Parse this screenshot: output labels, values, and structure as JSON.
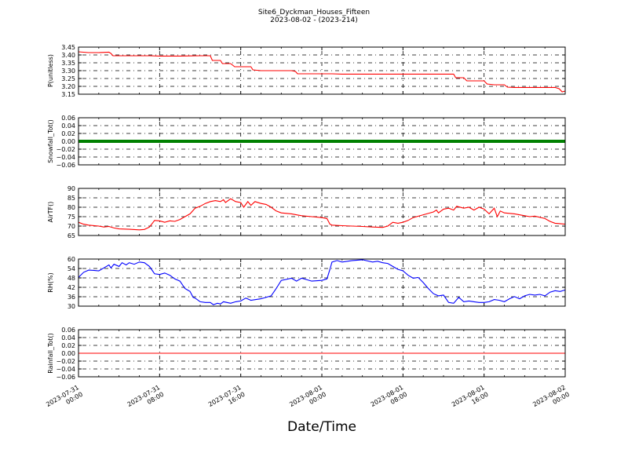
{
  "header": {
    "title": "Site6_Dyckman_Houses_Fifteen",
    "subtitle": "2023-08-02 - (2023-214)"
  },
  "xlabel": "Date/Time",
  "x_ticks": [
    "2023-07-31\n00:00",
    "2023-07-31\n08:00",
    "2023-07-31\n16:00",
    "2023-08-01\n00:00",
    "2023-08-01\n08:00",
    "2023-08-01\n16:00",
    "2023-08-02\n00:00"
  ],
  "x_range": [
    "2023-07-31 00:00",
    "2023-08-02 00:00"
  ],
  "colors": {
    "red": "#ff0000",
    "green": "#008000",
    "blue": "#0000ff"
  },
  "chart_data": [
    {
      "type": "line",
      "ylabel": "P(unitless)",
      "ylim": [
        3.15,
        3.45
      ],
      "yticks": [
        "3.15",
        "3.20",
        "3.25",
        "3.30",
        "3.35",
        "3.40",
        "3.45"
      ],
      "grid": true,
      "color": "#ff0000",
      "points": [
        [
          0,
          3.42
        ],
        [
          1,
          3.415
        ],
        [
          2,
          3.415
        ],
        [
          3,
          3.418
        ],
        [
          3.2,
          3.41
        ],
        [
          3.4,
          3.395
        ],
        [
          4,
          3.395
        ],
        [
          5,
          3.395
        ],
        [
          6,
          3.395
        ],
        [
          7,
          3.395
        ],
        [
          8,
          3.393
        ],
        [
          9,
          3.393
        ],
        [
          10,
          3.393
        ],
        [
          11,
          3.394
        ],
        [
          12,
          3.395
        ],
        [
          13,
          3.395
        ],
        [
          13.2,
          3.365
        ],
        [
          14,
          3.365
        ],
        [
          14.2,
          3.345
        ],
        [
          15,
          3.345
        ],
        [
          15.4,
          3.325
        ],
        [
          16,
          3.325
        ],
        [
          17,
          3.325
        ],
        [
          17.2,
          3.305
        ],
        [
          18,
          3.3
        ],
        [
          19,
          3.3
        ],
        [
          20,
          3.3
        ],
        [
          21,
          3.3
        ],
        [
          21.4,
          3.295
        ],
        [
          21.6,
          3.28
        ],
        [
          22,
          3.28
        ],
        [
          23,
          3.28
        ],
        [
          24,
          3.28
        ],
        [
          25,
          3.28
        ],
        [
          26,
          3.278
        ],
        [
          27,
          3.278
        ],
        [
          28,
          3.278
        ],
        [
          29,
          3.278
        ],
        [
          30,
          3.278
        ],
        [
          31,
          3.278
        ],
        [
          32,
          3.278
        ],
        [
          33,
          3.278
        ],
        [
          34,
          3.278
        ],
        [
          35,
          3.278
        ],
        [
          36,
          3.278
        ],
        [
          37,
          3.278
        ],
        [
          37.2,
          3.255
        ],
        [
          38,
          3.255
        ],
        [
          38.3,
          3.235
        ],
        [
          39,
          3.235
        ],
        [
          40,
          3.235
        ],
        [
          40.3,
          3.215
        ],
        [
          41,
          3.21
        ],
        [
          42,
          3.21
        ],
        [
          42.3,
          3.195
        ],
        [
          43,
          3.193
        ],
        [
          44,
          3.193
        ],
        [
          45,
          3.193
        ],
        [
          46,
          3.193
        ],
        [
          47,
          3.193
        ],
        [
          47.4,
          3.185
        ],
        [
          47.7,
          3.165
        ],
        [
          48,
          3.17
        ]
      ]
    },
    {
      "type": "line",
      "ylabel": "Snowfall_Tot()",
      "ylim": [
        -0.06,
        0.06
      ],
      "yticks": [
        "−0.06",
        "−0.04",
        "−0.02",
        "0.00",
        "0.02",
        "0.04",
        "0.06"
      ],
      "grid": true,
      "color": "#008000",
      "thick": true,
      "points": [
        [
          0,
          0
        ],
        [
          48,
          0
        ]
      ]
    },
    {
      "type": "line",
      "ylabel": "AirTF()",
      "ylim": [
        65,
        90
      ],
      "yticks": [
        "65",
        "70",
        "75",
        "80",
        "85",
        "90"
      ],
      "grid": true,
      "color": "#ff0000",
      "points": [
        [
          0,
          72
        ],
        [
          0.5,
          71
        ],
        [
          1,
          70.5
        ],
        [
          2,
          70
        ],
        [
          2.5,
          69.5
        ],
        [
          3,
          69.8
        ],
        [
          3.5,
          69
        ],
        [
          4,
          68.5
        ],
        [
          5,
          68.3
        ],
        [
          6,
          68
        ],
        [
          6.5,
          68.2
        ],
        [
          7,
          69.5
        ],
        [
          7.5,
          73
        ],
        [
          8,
          72.8
        ],
        [
          8.5,
          72
        ],
        [
          9,
          72.8
        ],
        [
          9.5,
          72.5
        ],
        [
          10,
          73.5
        ],
        [
          10.5,
          75
        ],
        [
          11,
          76.5
        ],
        [
          11.5,
          79.5
        ],
        [
          12,
          80.5
        ],
        [
          12.5,
          82
        ],
        [
          13,
          83
        ],
        [
          13.5,
          83.5
        ],
        [
          14,
          83
        ],
        [
          14.3,
          84
        ],
        [
          14.5,
          82.5
        ],
        [
          15,
          84.5
        ],
        [
          15.5,
          83
        ],
        [
          16,
          82.5
        ],
        [
          16.3,
          80
        ],
        [
          16.7,
          83
        ],
        [
          17,
          81
        ],
        [
          17.4,
          83
        ],
        [
          18,
          82
        ],
        [
          18.5,
          81.5
        ],
        [
          19,
          80
        ],
        [
          19.5,
          78
        ],
        [
          20,
          77
        ],
        [
          21,
          76.5
        ],
        [
          22,
          75.5
        ],
        [
          23,
          75
        ],
        [
          24,
          74.5
        ],
        [
          24.5,
          74
        ],
        [
          24.8,
          71
        ],
        [
          25,
          70.5
        ],
        [
          26,
          70.2
        ],
        [
          27,
          70
        ],
        [
          28,
          69.8
        ],
        [
          29,
          69.5
        ],
        [
          30,
          69.3
        ],
        [
          30.5,
          70
        ],
        [
          31,
          72
        ],
        [
          31.5,
          71.5
        ],
        [
          32,
          72
        ],
        [
          32.5,
          73
        ],
        [
          33,
          74.5
        ],
        [
          34,
          76
        ],
        [
          35,
          77.5
        ],
        [
          35.3,
          78.5
        ],
        [
          35.5,
          77
        ],
        [
          36,
          79
        ],
        [
          36.5,
          79.5
        ],
        [
          37,
          78.5
        ],
        [
          37.3,
          80.5
        ],
        [
          38,
          79.5
        ],
        [
          38.5,
          80
        ],
        [
          39,
          78.5
        ],
        [
          39.5,
          80
        ],
        [
          40,
          79
        ],
        [
          40.5,
          76.5
        ],
        [
          41,
          79.5
        ],
        [
          41.3,
          75
        ],
        [
          41.6,
          78
        ],
        [
          42,
          77
        ],
        [
          43,
          76.5
        ],
        [
          44,
          75.5
        ],
        [
          44.5,
          75
        ],
        [
          45,
          75.3
        ],
        [
          46,
          74
        ],
        [
          46.5,
          72.5
        ],
        [
          47,
          71.5
        ],
        [
          47.5,
          71.3
        ],
        [
          48,
          71
        ]
      ]
    },
    {
      "type": "line",
      "ylabel": "RH(%)",
      "ylim": [
        30,
        62
      ],
      "yticks": [
        "30",
        "36",
        "42",
        "48",
        "54",
        "60"
      ],
      "grid": true,
      "color": "#0000ff",
      "points": [
        [
          0,
          49.5
        ],
        [
          0.5,
          53
        ],
        [
          1,
          54.5
        ],
        [
          1.5,
          54.3
        ],
        [
          2,
          54
        ],
        [
          2.5,
          56
        ],
        [
          3,
          58
        ],
        [
          3.2,
          56
        ],
        [
          3.5,
          58.5
        ],
        [
          4,
          57
        ],
        [
          4.3,
          59.5
        ],
        [
          4.7,
          58
        ],
        [
          5,
          59.5
        ],
        [
          5.5,
          58.5
        ],
        [
          6,
          60
        ],
        [
          6.5,
          59.5
        ],
        [
          7,
          57
        ],
        [
          7.3,
          54
        ],
        [
          7.5,
          52
        ],
        [
          8,
          51.5
        ],
        [
          8.5,
          52.5
        ],
        [
          9,
          51
        ],
        [
          9.5,
          48.5
        ],
        [
          10,
          47
        ],
        [
          10.5,
          42
        ],
        [
          11,
          40
        ],
        [
          11.3,
          36
        ],
        [
          11.5,
          35.5
        ],
        [
          12,
          33
        ],
        [
          12.5,
          32.5
        ],
        [
          13,
          32.5
        ],
        [
          13.3,
          31
        ],
        [
          13.7,
          32
        ],
        [
          14,
          31.5
        ],
        [
          14.3,
          33
        ],
        [
          15,
          32
        ],
        [
          15.5,
          33
        ],
        [
          16,
          33.5
        ],
        [
          16.5,
          35.5
        ],
        [
          17,
          34
        ],
        [
          17.5,
          34.5
        ],
        [
          18,
          35
        ],
        [
          19,
          37
        ],
        [
          19.5,
          42
        ],
        [
          20,
          47.5
        ],
        [
          21,
          49
        ],
        [
          21.5,
          47
        ],
        [
          22,
          49
        ],
        [
          23,
          47
        ],
        [
          24,
          47.5
        ],
        [
          24.5,
          48.5
        ],
        [
          24.8,
          55
        ],
        [
          25,
          60
        ],
        [
          25.5,
          61
        ],
        [
          26,
          60
        ],
        [
          27,
          61
        ],
        [
          28,
          61.5
        ],
        [
          29,
          60
        ],
        [
          29.5,
          60.5
        ],
        [
          30,
          59.5
        ],
        [
          30.5,
          59
        ],
        [
          31,
          57
        ],
        [
          31.5,
          55
        ],
        [
          32,
          54
        ],
        [
          32.5,
          51
        ],
        [
          33,
          49
        ],
        [
          33.5,
          49.5
        ],
        [
          34,
          46
        ],
        [
          34.5,
          42
        ],
        [
          35,
          38.5
        ],
        [
          35.5,
          37
        ],
        [
          36,
          37.5
        ],
        [
          36.5,
          32.5
        ],
        [
          37,
          32
        ],
        [
          37.5,
          36
        ],
        [
          38,
          33
        ],
        [
          38.5,
          33.5
        ],
        [
          39,
          33
        ],
        [
          39.5,
          32.5
        ],
        [
          40,
          32.5
        ],
        [
          40.5,
          33
        ],
        [
          41,
          34.5
        ],
        [
          41.5,
          34
        ],
        [
          42,
          33
        ],
        [
          42.5,
          35
        ],
        [
          43,
          36.5
        ],
        [
          43.5,
          35
        ],
        [
          44,
          37
        ],
        [
          44.5,
          38
        ],
        [
          45,
          37.5
        ],
        [
          45.5,
          38
        ],
        [
          46,
          37
        ],
        [
          46.5,
          39.5
        ],
        [
          47,
          40.5
        ],
        [
          47.5,
          40
        ],
        [
          48,
          41
        ]
      ]
    },
    {
      "type": "line",
      "ylabel": "Rainfall_Tot()",
      "ylim": [
        -0.06,
        0.06
      ],
      "yticks": [
        "−0.06",
        "−0.04",
        "−0.02",
        "0.00",
        "0.02",
        "0.04",
        "0.06"
      ],
      "grid": true,
      "color": "#ff0000",
      "points": [
        [
          0,
          0
        ],
        [
          48,
          0
        ]
      ]
    }
  ]
}
